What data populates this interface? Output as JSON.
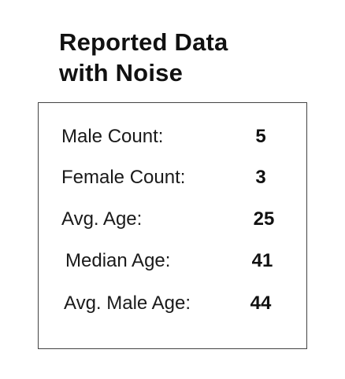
{
  "title": {
    "line1": "Reported Data",
    "line2": "with Noise"
  },
  "stats": [
    {
      "label": "Male Count:",
      "value": "5"
    },
    {
      "label": "Female Count:",
      "value": "3"
    },
    {
      "label": "Avg. Age:",
      "value": "25"
    },
    {
      "label": "Median Age:",
      "value": "41"
    },
    {
      "label": "Avg. Male Age:",
      "value": "44"
    }
  ],
  "colors": {
    "text": "#111111",
    "border": "#444444",
    "background": "#ffffff"
  }
}
